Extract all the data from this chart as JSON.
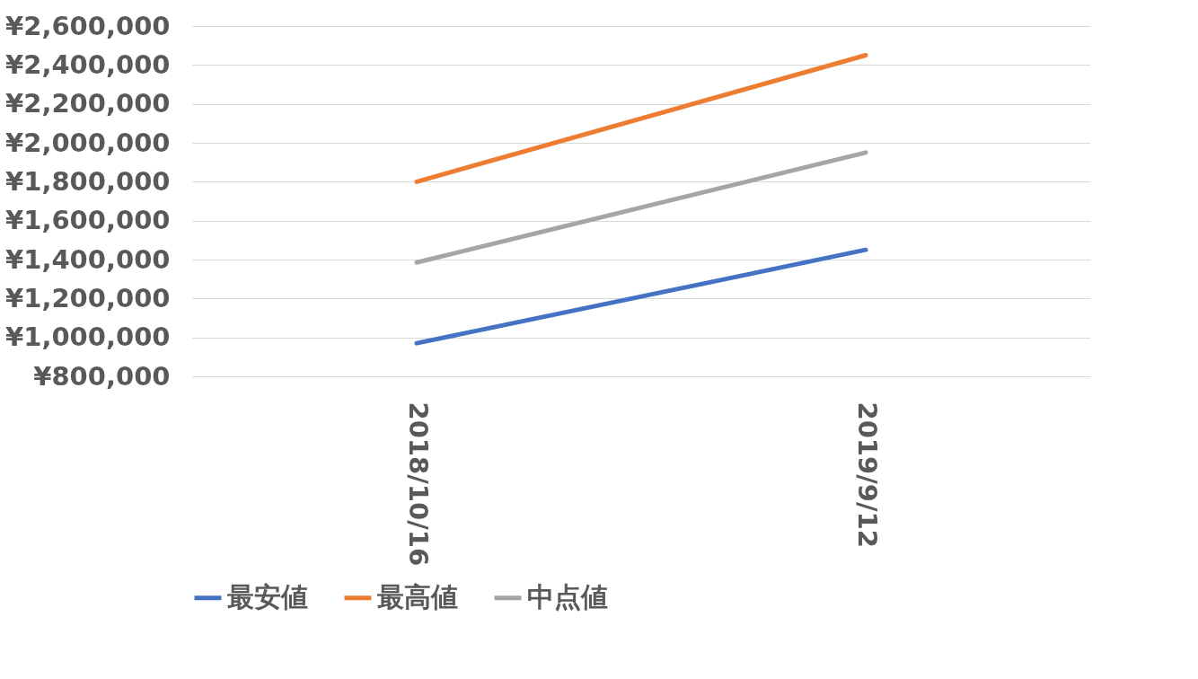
{
  "chart_data": {
    "type": "line",
    "categories": [
      "2018/10/16",
      "2019/9/12"
    ],
    "series": [
      {
        "name": "最安値",
        "color": "#4472c4",
        "values": [
          970000,
          1450000
        ]
      },
      {
        "name": "最高値",
        "color": "#ed7d31",
        "values": [
          1800000,
          2450000
        ]
      },
      {
        "name": "中点値",
        "color": "#a5a5a5",
        "values": [
          1385000,
          1950000
        ]
      }
    ],
    "ylim": [
      800000,
      2600000
    ],
    "yticks": [
      {
        "value": 800000,
        "label": "¥800,000"
      },
      {
        "value": 1000000,
        "label": "¥1,000,000"
      },
      {
        "value": 1200000,
        "label": "¥1,200,000"
      },
      {
        "value": 1400000,
        "label": "¥1,400,000"
      },
      {
        "value": 1600000,
        "label": "¥1,600,000"
      },
      {
        "value": 1800000,
        "label": "¥1,800,000"
      },
      {
        "value": 2000000,
        "label": "¥2,000,000"
      },
      {
        "value": 2200000,
        "label": "¥2,200,000"
      },
      {
        "value": 2400000,
        "label": "¥2,400,000"
      },
      {
        "value": 2600000,
        "label": "¥2,600,000"
      }
    ],
    "grid": "y",
    "legend": "bottom",
    "marker": "none",
    "line_style": "solid"
  }
}
